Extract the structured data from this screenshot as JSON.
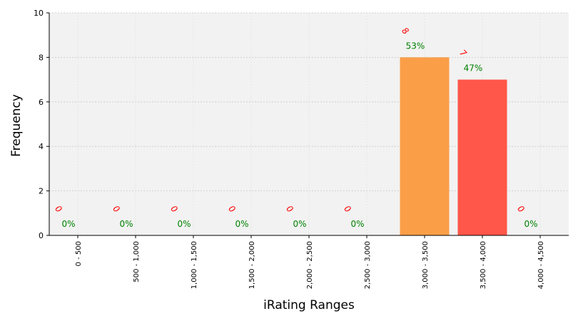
{
  "chart_data": {
    "type": "bar",
    "categories": [
      "0 - 500",
      "500 - 1,000",
      "1,000 - 1,500",
      "1,500 - 2,000",
      "2,000 - 2,500",
      "2,500 - 3,000",
      "3,000 - 3,500",
      "3,500 - 4,000",
      "4,000 - 4,500"
    ],
    "values": [
      0,
      0,
      0,
      0,
      0,
      0,
      8,
      7,
      0
    ],
    "count_labels": [
      "0",
      "0",
      "0",
      "0",
      "0",
      "0",
      "8",
      "7",
      "0"
    ],
    "percent_labels": [
      "0%",
      "0%",
      "0%",
      "0%",
      "0%",
      "0%",
      "53%",
      "47%",
      "0%"
    ],
    "bar_colors": [
      "#fb9e48",
      "#fb9e48",
      "#fb9e48",
      "#fb9e48",
      "#fb9e48",
      "#fb9e48",
      "#fb9e48",
      "#ff5749",
      "#fb9e48"
    ],
    "xlabel": "iRating Ranges",
    "ylabel": "Frequency",
    "ylim": [
      0,
      10
    ],
    "yticks": [
      "0",
      "2",
      "4",
      "6",
      "8",
      "10"
    ],
    "grid": true,
    "plot_background": "#f2f2f2"
  }
}
